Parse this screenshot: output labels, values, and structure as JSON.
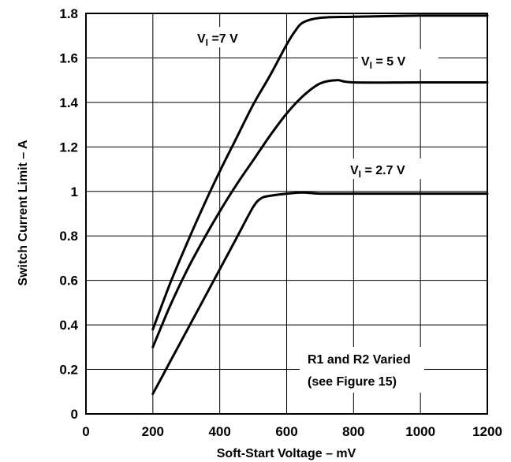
{
  "chart_data": {
    "type": "line",
    "title": "",
    "xlabel": "Soft-Start Voltage – mV",
    "ylabel": "Switch Current Limit – A",
    "xlim": [
      0,
      1200
    ],
    "ylim": [
      0,
      1.8
    ],
    "x_ticks": [
      "0",
      "200",
      "400",
      "600",
      "800",
      "1000",
      "1200"
    ],
    "y_ticks": [
      "0",
      "0.2",
      "0.4",
      "0.6",
      "0.8",
      "1",
      "1.2",
      "1.4",
      "1.6",
      "1.8"
    ],
    "grid": true,
    "series": [
      {
        "name": "VI =7 V",
        "x": [
          200,
          250,
          300,
          350,
          400,
          450,
          500,
          550,
          600,
          625,
          650,
          700,
          800,
          1000,
          1200
        ],
        "y": [
          0.38,
          0.58,
          0.76,
          0.93,
          1.09,
          1.24,
          1.39,
          1.52,
          1.66,
          1.72,
          1.76,
          1.78,
          1.785,
          1.79,
          1.79
        ]
      },
      {
        "name": "VI = 5 V",
        "x": [
          200,
          250,
          300,
          350,
          400,
          450,
          500,
          550,
          600,
          650,
          700,
          750,
          800,
          1000,
          1200
        ],
        "y": [
          0.3,
          0.48,
          0.64,
          0.78,
          0.91,
          1.03,
          1.14,
          1.25,
          1.35,
          1.43,
          1.485,
          1.5,
          1.49,
          1.49,
          1.49
        ]
      },
      {
        "name": "VI = 2.7 V",
        "x": [
          200,
          250,
          300,
          350,
          400,
          450,
          500,
          525,
          550,
          600,
          650,
          700,
          800,
          1000,
          1200
        ],
        "y": [
          0.09,
          0.23,
          0.37,
          0.51,
          0.65,
          0.79,
          0.93,
          0.97,
          0.98,
          0.99,
          0.995,
          0.99,
          0.99,
          0.99,
          0.99
        ]
      }
    ],
    "series_labels": [
      {
        "prefix": "V",
        "sub": "I",
        "suffix": " =7 V"
      },
      {
        "prefix": "V",
        "sub": "I",
        "suffix": " = 5 V"
      },
      {
        "prefix": "V",
        "sub": "I",
        "suffix": " = 2.7 V"
      }
    ],
    "annotations": [
      "R1 and R2 Varied",
      "(see Figure 15)"
    ]
  }
}
